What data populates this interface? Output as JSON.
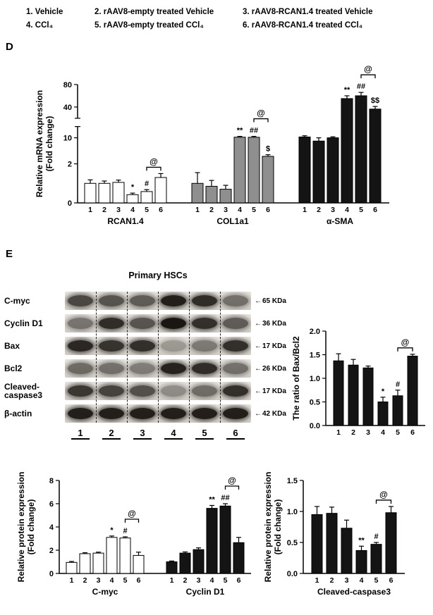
{
  "figure": {
    "panel_d": "D",
    "panel_e": "E"
  },
  "legend": {
    "row1": [
      "1. Vehicle",
      "2. rAAV8-empty treated Vehicle",
      "3. rAAV8-RCAN1.4 treated Vehicle"
    ],
    "row2": [
      "4. CCl₄",
      "5. rAAV8-empty treated CCl₄",
      "6. rAAV8-RCAN1.4 treated CCl₄"
    ]
  },
  "blot": {
    "title": "Primary HSCs",
    "arrow": "←",
    "lanes": [
      "1",
      "2",
      "3",
      "4",
      "5",
      "6"
    ],
    "rows": [
      {
        "label": "C-myc",
        "kda": "65 KDa",
        "bands": [
          0.72,
          0.66,
          0.62,
          0.92,
          0.85,
          0.52
        ]
      },
      {
        "label": "Cyclin D1",
        "kda": "36 KDa",
        "bands": [
          0.5,
          0.85,
          0.66,
          0.96,
          0.84,
          0.62
        ]
      },
      {
        "label": "Bax",
        "kda": "17 KDa",
        "bands": [
          0.88,
          0.82,
          0.84,
          0.32,
          0.48,
          0.84
        ]
      },
      {
        "label": "Bcl2",
        "kda": "26 KDa",
        "bands": [
          0.55,
          0.52,
          0.46,
          0.9,
          0.85,
          0.52
        ]
      },
      {
        "label": "Cleaved-caspase3",
        "kda": "17 KDa",
        "bands": [
          0.8,
          0.74,
          0.68,
          0.38,
          0.54,
          0.84
        ]
      },
      {
        "label": "β-actin",
        "kda": "42 KDa",
        "bands": [
          0.92,
          0.92,
          0.92,
          0.92,
          0.92,
          0.92
        ]
      }
    ]
  },
  "chart_data": [
    {
      "id": "mrna",
      "type": "bar",
      "title": "",
      "ylabel_lines": [
        "Relative mRNA expression",
        "(Fold change)"
      ],
      "yticks": [
        {
          "v": 0,
          "label": "0"
        },
        {
          "v": 2,
          "label": "2"
        },
        {
          "v": 10,
          "label": "10"
        },
        {
          "v": 40,
          "label": "40"
        },
        {
          "v": 80,
          "label": "80"
        }
      ],
      "axis_anchors": [
        [
          0,
          0
        ],
        [
          2,
          0.33
        ],
        [
          10,
          0.55
        ],
        [
          40,
          0.81
        ],
        [
          80,
          1
        ]
      ],
      "axis_break_frac": 0.68,
      "x_labels": [
        "1",
        "2",
        "3",
        "4",
        "5",
        "6"
      ],
      "groups": [
        {
          "name": "RCAN1.4",
          "color": "#ffffff",
          "values": [
            1.0,
            1.0,
            1.05,
            0.42,
            0.58,
            1.3
          ],
          "errors": [
            0.18,
            0.12,
            0.12,
            0.08,
            0.1,
            0.2
          ],
          "ann": [
            "",
            "",
            "",
            "*",
            "#",
            ""
          ],
          "bracket": {
            "from": 4,
            "to": 5,
            "label": "@"
          }
        },
        {
          "name": "COL1a1",
          "color": "#8f8f8f",
          "values": [
            1.0,
            0.85,
            0.7,
            10.6,
            10.5,
            4.3
          ],
          "errors": [
            0.55,
            0.3,
            0.2,
            0.8,
            0.9,
            0.5
          ],
          "ann": [
            "",
            "",
            "",
            "**",
            "##",
            "$"
          ],
          "bracket": {
            "from": 4,
            "to": 5,
            "label": "@"
          }
        },
        {
          "name": "α-SMA",
          "color": "#141414",
          "values": [
            10.8,
            9.0,
            10.0,
            55,
            60,
            38
          ],
          "errors": [
            1.2,
            1.0,
            1.0,
            5,
            6,
            3
          ],
          "ann": [
            "",
            "",
            "",
            "**",
            "##",
            "$$"
          ],
          "bracket": {
            "from": 4,
            "to": 5,
            "label": "@"
          }
        }
      ]
    },
    {
      "id": "bax",
      "type": "bar",
      "title": "",
      "ylabel_lines": [
        "The ratio of Bax/Bcl2"
      ],
      "yticks": [
        {
          "v": 0,
          "label": "0.0"
        },
        {
          "v": 0.5,
          "label": "0.5"
        },
        {
          "v": 1.0,
          "label": "1.0"
        },
        {
          "v": 1.5,
          "label": "1.5"
        },
        {
          "v": 2.0,
          "label": "2.0"
        }
      ],
      "axis_anchors": [
        [
          0,
          0
        ],
        [
          2,
          1
        ]
      ],
      "axis_break_frac": null,
      "x_labels": [
        "1",
        "2",
        "3",
        "4",
        "5",
        "6"
      ],
      "groups": [
        {
          "name": "",
          "color": "#141414",
          "values": [
            1.37,
            1.28,
            1.22,
            0.5,
            0.63,
            1.47
          ],
          "errors": [
            0.15,
            0.12,
            0.04,
            0.1,
            0.12,
            0.04
          ],
          "ann": [
            "",
            "",
            "",
            "*",
            "#",
            ""
          ],
          "bracket": {
            "from": 4,
            "to": 5,
            "label": "@"
          }
        }
      ]
    },
    {
      "id": "cmyc",
      "type": "bar",
      "title": "",
      "ylabel_lines": [
        "Relative protein expression",
        "(Fold change)"
      ],
      "yticks": [
        {
          "v": 0,
          "label": "0"
        },
        {
          "v": 2,
          "label": "2"
        },
        {
          "v": 4,
          "label": "4"
        },
        {
          "v": 6,
          "label": "6"
        },
        {
          "v": 8,
          "label": "8"
        }
      ],
      "axis_anchors": [
        [
          0,
          0
        ],
        [
          8,
          1
        ]
      ],
      "axis_break_frac": null,
      "x_labels": [
        "1",
        "2",
        "3",
        "4",
        "5",
        "6"
      ],
      "groups": [
        {
          "name": "C-myc",
          "color": "#ffffff",
          "values": [
            0.95,
            1.7,
            1.75,
            3.1,
            3.05,
            1.55
          ],
          "errors": [
            0.08,
            0.08,
            0.08,
            0.12,
            0.1,
            0.28
          ],
          "ann": [
            "",
            "",
            "",
            "*",
            "#",
            ""
          ],
          "bracket": {
            "from": 4,
            "to": 5,
            "label": "@"
          }
        },
        {
          "name": "Cyclin D1",
          "color": "#141414",
          "values": [
            1.0,
            1.75,
            2.05,
            5.6,
            5.8,
            2.65
          ],
          "errors": [
            0.07,
            0.1,
            0.15,
            0.25,
            0.2,
            0.45
          ],
          "ann": [
            "",
            "",
            "",
            "**",
            "##",
            ""
          ],
          "bracket": {
            "from": 4,
            "to": 5,
            "label": "@"
          }
        }
      ]
    },
    {
      "id": "casp",
      "type": "bar",
      "title": "",
      "ylabel_lines": [
        "Relative protein expression",
        "(Fold change)"
      ],
      "yticks": [
        {
          "v": 0,
          "label": "0.0"
        },
        {
          "v": 0.5,
          "label": "0.5"
        },
        {
          "v": 1.0,
          "label": "1.0"
        },
        {
          "v": 1.5,
          "label": "1.5"
        }
      ],
      "axis_anchors": [
        [
          0,
          0
        ],
        [
          1.5,
          1
        ]
      ],
      "axis_break_frac": null,
      "x_labels": [
        "1",
        "2",
        "3",
        "4",
        "5",
        "6"
      ],
      "groups": [
        {
          "name": "Cleaved-caspase3",
          "color": "#141414",
          "values": [
            0.95,
            0.97,
            0.73,
            0.37,
            0.47,
            0.98
          ],
          "errors": [
            0.13,
            0.1,
            0.13,
            0.07,
            0.03,
            0.1
          ],
          "ann": [
            "",
            "",
            "",
            "**",
            "#",
            ""
          ],
          "bracket": {
            "from": 4,
            "to": 5,
            "label": "@"
          }
        }
      ]
    }
  ]
}
